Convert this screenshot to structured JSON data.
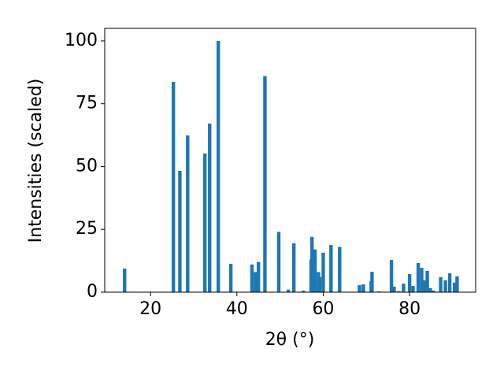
{
  "chart_data": {
    "type": "bar",
    "xlabel": "2θ (°)",
    "ylabel": "Intensities (scaled)",
    "x": [
      14.0,
      25.3,
      26.8,
      28.6,
      32.6,
      33.7,
      35.7,
      38.6,
      43.5,
      44.3,
      45.0,
      46.5,
      49.7,
      51.9,
      53.2,
      55.4,
      57.2,
      57.4,
      58.1,
      58.9,
      59.2,
      60.0,
      61.8,
      63.8,
      68.4,
      69.3,
      71.1,
      71.3,
      72.9,
      75.8,
      76.4,
      77.5,
      78.6,
      80.0,
      80.8,
      82.0,
      82.8,
      83.5,
      84.1,
      84.8,
      85.5,
      87.2,
      88.3,
      89.3,
      90.4,
      91.0
    ],
    "values": [
      9.4,
      83.7,
      48.3,
      62.4,
      55.2,
      67.1,
      100,
      11.3,
      11,
      8,
      12,
      86,
      24,
      1,
      19.5,
      0.6,
      13,
      22,
      17,
      8,
      6,
      15.7,
      18.8,
      18,
      2.8,
      3.1,
      4.4,
      8.1,
      0.3,
      12.8,
      2.2,
      0.4,
      3.4,
      7.2,
      2.5,
      11.6,
      9.7,
      4.7,
      8.5,
      1.6,
      0.6,
      6,
      4.7,
      7.5,
      3.8,
      6.3
    ],
    "color": "#1f77b4",
    "xlim": [
      9.4,
      95.3
    ],
    "ylim": [
      0,
      105
    ],
    "xticks": [
      20,
      40,
      60,
      80
    ],
    "yticks": [
      0,
      25,
      50,
      75,
      100
    ],
    "grid": false
  }
}
